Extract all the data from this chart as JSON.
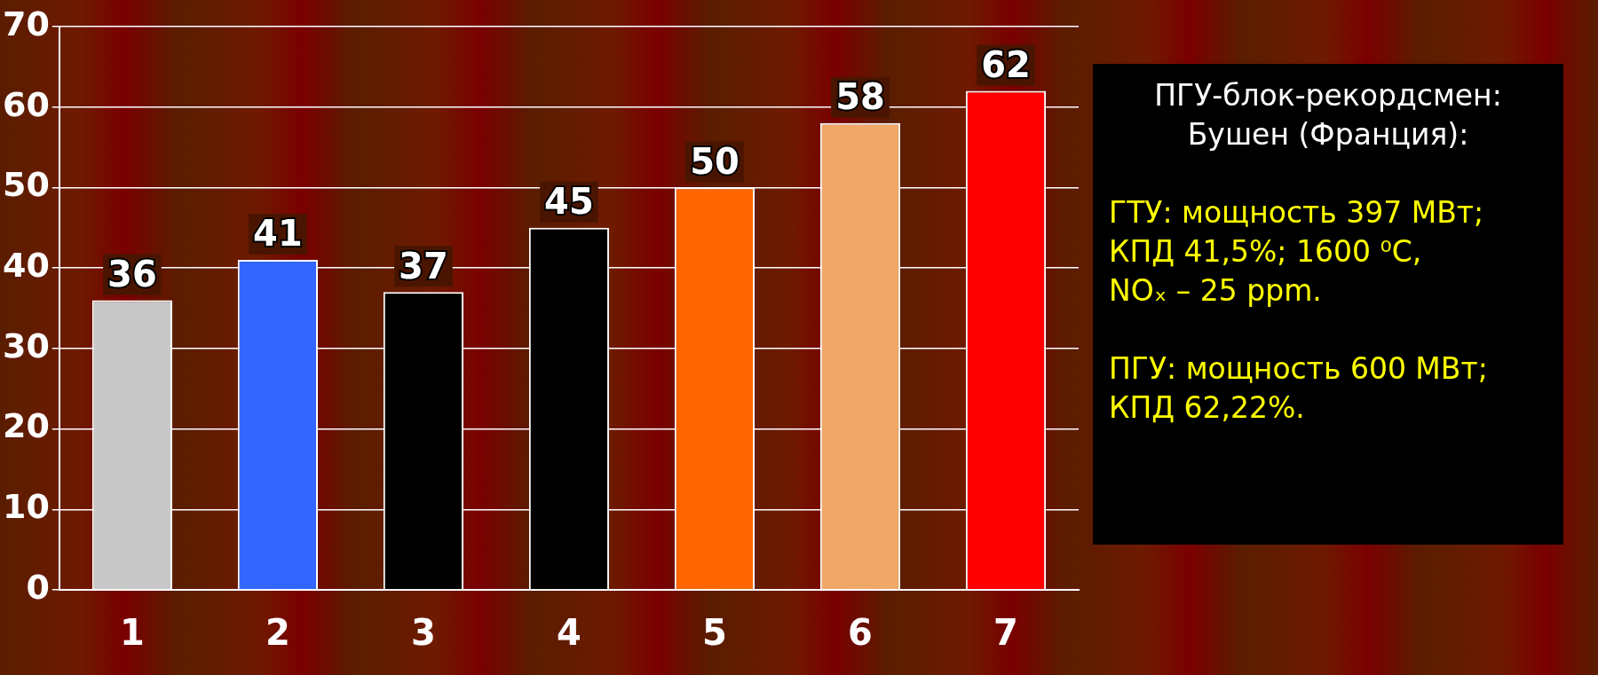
{
  "chart_data": {
    "type": "bar",
    "categories": [
      "1",
      "2",
      "3",
      "4",
      "5",
      "6",
      "7"
    ],
    "values": [
      36,
      41,
      37,
      45,
      50,
      58,
      62
    ],
    "colors": [
      "#c8c8c8",
      "#3366ff",
      "#000000",
      "#000000",
      "#ff6600",
      "#f0a868",
      "#ff0000"
    ],
    "ylim": [
      0,
      70
    ],
    "yticks": [
      0,
      10,
      20,
      30,
      40,
      50,
      60,
      70
    ],
    "grid": "y",
    "data_labels": true,
    "legend": false,
    "annotations": [
      "ПГУ-блок-рекордсмен:\nБушен (Франция):",
      "ГТУ: мощность 397 МВт;\nКПД 41,5%;  1600 ⁰C,\nNOₓ – 25 ppm.",
      "ПГУ: мощность 600 МВт;\nКПД 62,22%."
    ]
  }
}
